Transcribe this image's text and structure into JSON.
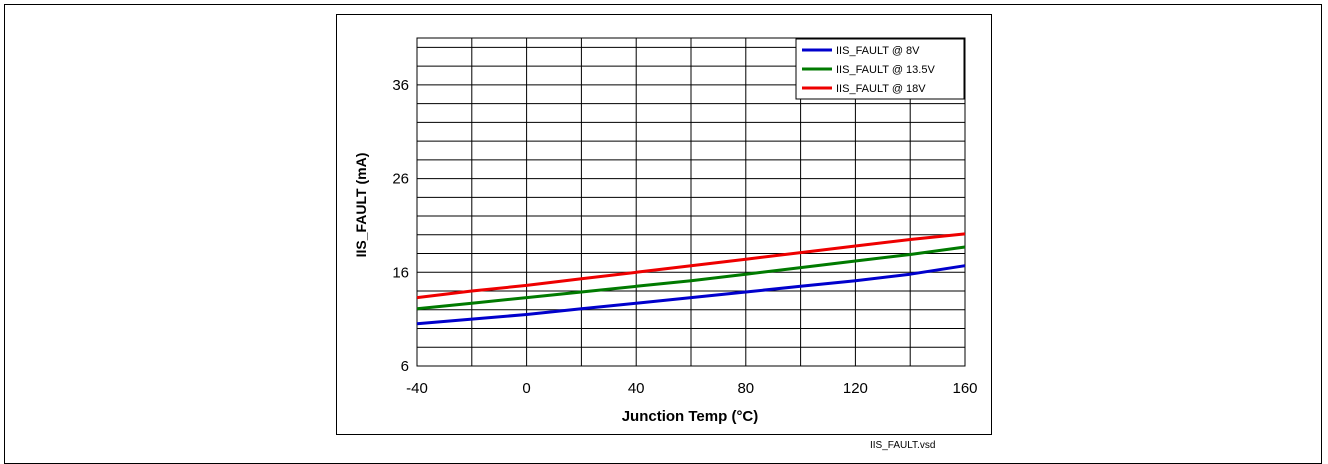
{
  "chart_data": {
    "type": "line",
    "title": "",
    "xlabel": "Junction Temp (°C)",
    "ylabel": "IIS_FAULT (mA)",
    "xlim": [
      -40,
      160
    ],
    "ylim": [
      6,
      41
    ],
    "x_ticks": [
      -40,
      0,
      40,
      80,
      120,
      160
    ],
    "y_ticks": [
      6,
      16,
      26,
      36
    ],
    "grid": true,
    "legend_position": "top-right",
    "x": [
      -40,
      -20,
      0,
      20,
      40,
      60,
      80,
      100,
      120,
      140,
      160
    ],
    "series": [
      {
        "name": "IIS_FAULT @ 8V",
        "color": "#0000cc",
        "values": [
          10.5,
          11.0,
          11.5,
          12.1,
          12.7,
          13.3,
          13.9,
          14.5,
          15.1,
          15.8,
          16.7
        ]
      },
      {
        "name": "IIS_FAULT @ 13.5V",
        "color": "#007a00",
        "values": [
          12.1,
          12.7,
          13.3,
          13.9,
          14.5,
          15.1,
          15.8,
          16.5,
          17.2,
          17.9,
          18.7
        ]
      },
      {
        "name": "IIS_FAULT @ 18V",
        "color": "#ee0000",
        "values": [
          13.3,
          14.0,
          14.6,
          15.3,
          16.0,
          16.7,
          17.4,
          18.1,
          18.8,
          19.5,
          20.1
        ]
      }
    ]
  },
  "footer": {
    "file_label": "IIS_FAULT.vsd"
  }
}
